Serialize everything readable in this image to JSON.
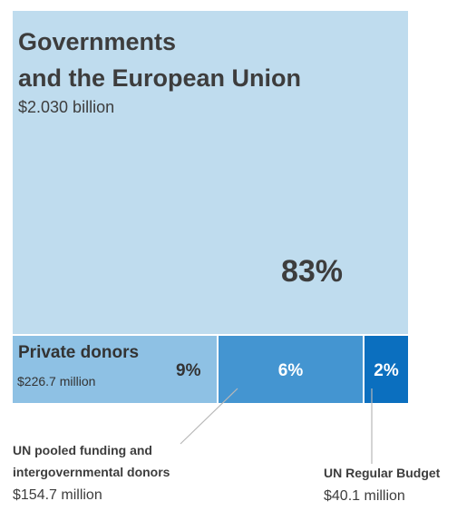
{
  "chart_data": {
    "type": "treemap",
    "segments": [
      {
        "id": "governments",
        "label_line1": "Governments",
        "label_line2": "and the European Union",
        "amount": "$2.030 billion",
        "value_billion": 2.03,
        "percent": 83,
        "percent_label": "83%",
        "color": "#bfdcee"
      },
      {
        "id": "private",
        "label": "Private donors",
        "amount": "$226.7 million",
        "value_billion": 0.2267,
        "percent": 9,
        "percent_label": "9%",
        "color": "#8ec1e4"
      },
      {
        "id": "pooled",
        "label_line1": "UN pooled funding and",
        "label_line2": "intergovernmental donors",
        "amount": "$154.7 million",
        "value_billion": 0.1547,
        "percent": 6,
        "percent_label": "6%",
        "color": "#4495d1"
      },
      {
        "id": "regular",
        "label": "UN Regular Budget",
        "amount": "$40.1 million",
        "value_billion": 0.0401,
        "percent": 2,
        "percent_label": "2%",
        "color": "#0b6fbf"
      }
    ]
  }
}
